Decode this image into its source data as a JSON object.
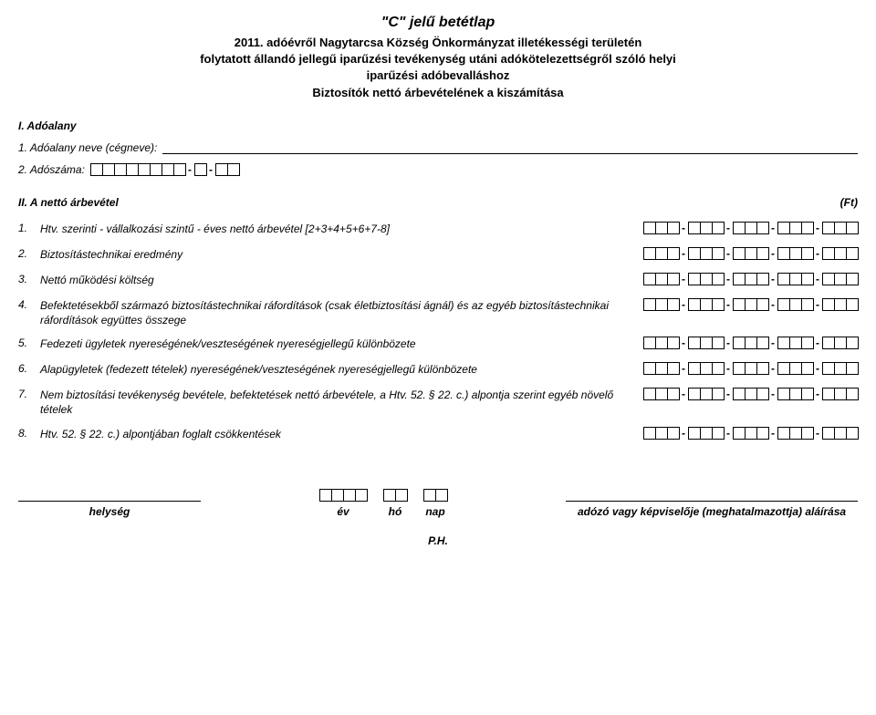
{
  "header": {
    "title": "\"C\" jelű betétlap",
    "subtitle_line1": "2011. adóévről Nagytarcsa Község Önkormányzat illetékességi területén",
    "subtitle_line2": "folytatott állandó jellegű iparűzési tevékenység utáni adókötelezettségről szóló helyi",
    "subtitle_line3": "iparűzési adóbevalláshoz",
    "subtitle_line4": "Biztosítók nettó árbevételének a kiszámítása"
  },
  "section1": {
    "heading": "I.  Adóalany",
    "name_label": "1.  Adóalany neve (cégneve):",
    "tax_label": "2.  Adószáma:"
  },
  "section2": {
    "heading": "II.  A nettó árbevétel",
    "unit": "(Ft)",
    "items": [
      {
        "num": "1.",
        "text": "Htv. szerinti - vállalkozási szintű - éves nettó árbevétel [2+3+4+5+6+7-8]"
      },
      {
        "num": "2.",
        "text": "Biztosítástechnikai eredmény"
      },
      {
        "num": "3.",
        "text": "Nettó működési költség"
      },
      {
        "num": "4.",
        "text": "Befektetésekből származó biztosítástechnikai ráfordítások (csak életbiztosítási ágnál) és az egyéb biztosítástechnikai ráfordítások együttes összege"
      },
      {
        "num": "5.",
        "text": "Fedezeti ügyletek nyereségének/veszteségének nyereségjellegű különbözete"
      },
      {
        "num": "6.",
        "text": "Alapügyletek (fedezett tételek) nyereségének/veszteségének nyereségjellegű különbözete"
      },
      {
        "num": "7.",
        "text": "Nem biztosítási tevékenység bevétele, befektetések nettó árbevétele, a Htv. 52. § 22. c.) alpontja szerint egyéb növelő tételek"
      },
      {
        "num": "8.",
        "text": "Htv. 52. § 22. c.) alpontjában foglalt csökkentések"
      }
    ]
  },
  "footer": {
    "place": "helység",
    "year": "év",
    "month": "hó",
    "day": "nap",
    "sign": "adózó vagy képviselője (meghatalmazottja) aláírása",
    "ph": "P.H."
  }
}
